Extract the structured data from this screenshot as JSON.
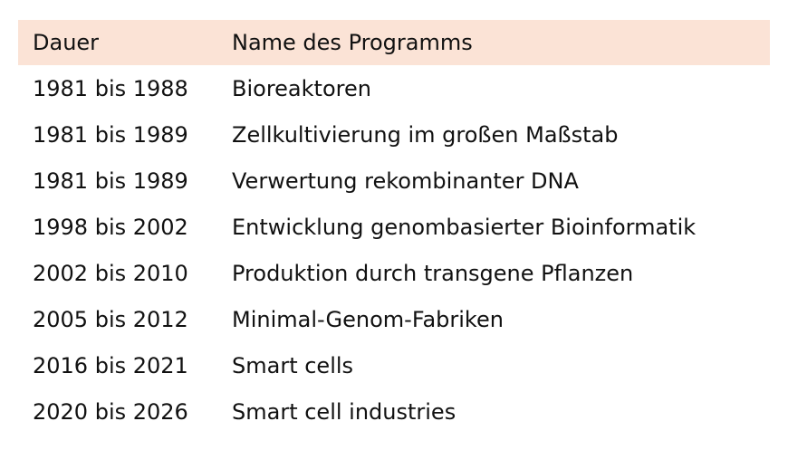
{
  "table": {
    "header": [
      "Dauer",
      "Name des Programms"
    ],
    "rows": [
      [
        "1981 bis 1988",
        "Bioreaktoren"
      ],
      [
        "1981 bis 1989",
        "Zellkultivierung im großen Maßstab"
      ],
      [
        "1981 bis 1989",
        "Verwertung rekombinanter DNA"
      ],
      [
        "1998 bis 2002",
        "Entwicklung genombasierter Bioinformatik"
      ],
      [
        "2002 bis 2010",
        "Produktion durch transgene Pflanzen"
      ],
      [
        "2005 bis 2012",
        "Minimal-Genom-Fabriken"
      ],
      [
        "2016 bis 2021",
        "Smart cells"
      ],
      [
        "2020 bis 2026",
        "Smart cell industries"
      ]
    ]
  }
}
